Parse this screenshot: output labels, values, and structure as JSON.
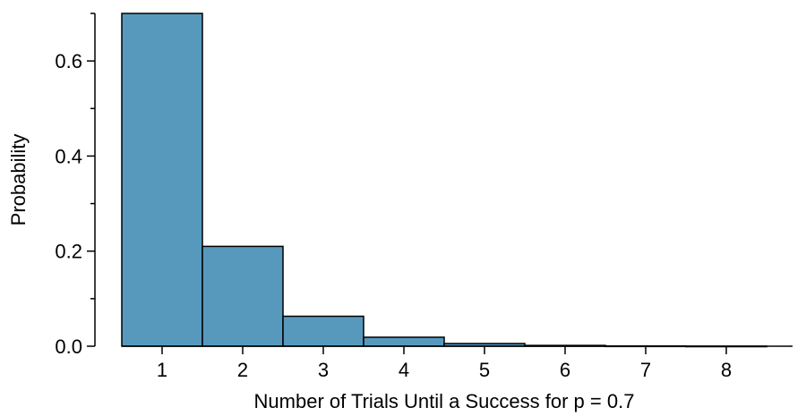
{
  "chart_data": {
    "type": "bar",
    "title": "",
    "xlabel": "Number of Trials Until a Success for p = 0.7",
    "ylabel": "Probability",
    "categories": [
      "1",
      "2",
      "3",
      "4",
      "5",
      "6",
      "7",
      "8"
    ],
    "values": [
      0.7,
      0.21,
      0.063,
      0.0189,
      0.00567,
      0.0017,
      0.00051,
      0.00015
    ],
    "ylim": [
      0,
      0.7
    ],
    "yticks": [
      "0.0",
      "0.2",
      "0.4",
      "0.6"
    ],
    "grid": false,
    "legend": "none",
    "bar_color": "#5799bd",
    "edge_color": "#000000"
  }
}
